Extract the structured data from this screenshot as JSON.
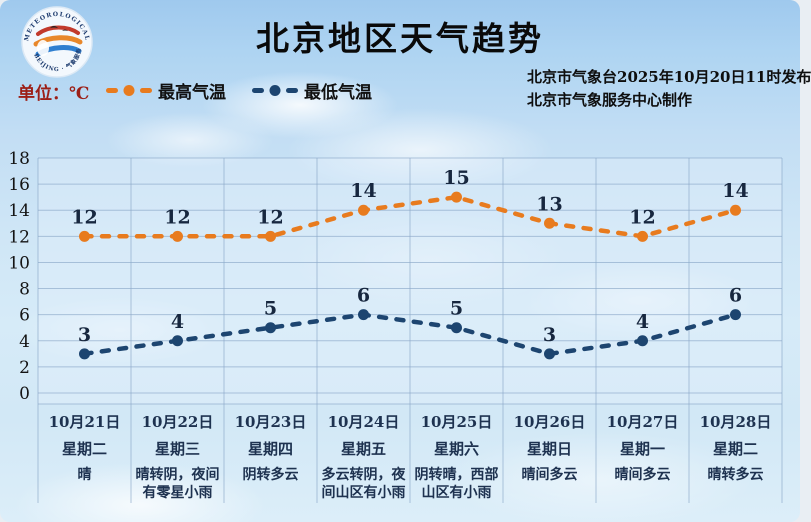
{
  "header": {
    "title": "北京地区天气趋势",
    "unit_label": "单位：℃",
    "issued_line1": "北京市气象台2025年10月20日11时发布",
    "issued_line2": "北京市气象服务中心制作",
    "logo": {
      "ring_text_top": "METEOROLOGICAL SERVICE",
      "ring_text_bottom": "BEIJING · 气象服务"
    }
  },
  "legend": {
    "items": [
      {
        "label": "最高气温",
        "color": "#e87b1e"
      },
      {
        "label": "最低气温",
        "color": "#1d4570"
      }
    ]
  },
  "chart_data": {
    "type": "line",
    "title": "北京地区天气趋势",
    "unit": "℃",
    "x": [
      "10月21日",
      "10月22日",
      "10月23日",
      "10月24日",
      "10月25日",
      "10月26日",
      "10月27日",
      "10月28日"
    ],
    "x_weekdays": [
      "星期二",
      "星期三",
      "星期四",
      "星期五",
      "星期六",
      "星期日",
      "星期一",
      "星期二"
    ],
    "x_weather": [
      "晴",
      "晴转阴，夜间有零星小雨",
      "阴转多云",
      "多云转阴，夜间山区有小雨",
      "阴转晴，西部山区有小雨",
      "晴间多云",
      "晴间多云",
      "晴转多云"
    ],
    "series": [
      {
        "name": "最高气温",
        "color": "#e87b1e",
        "style": "dashed",
        "marker": "circle",
        "values": [
          12,
          12,
          12,
          14,
          15,
          13,
          12,
          14
        ]
      },
      {
        "name": "最低气温",
        "color": "#1d4570",
        "style": "dashed",
        "marker": "circle",
        "values": [
          3,
          4,
          5,
          6,
          5,
          3,
          4,
          6
        ]
      }
    ],
    "ylim": [
      0,
      18
    ],
    "ytick_step": 2,
    "grid": true,
    "legend_position": "top-left"
  }
}
